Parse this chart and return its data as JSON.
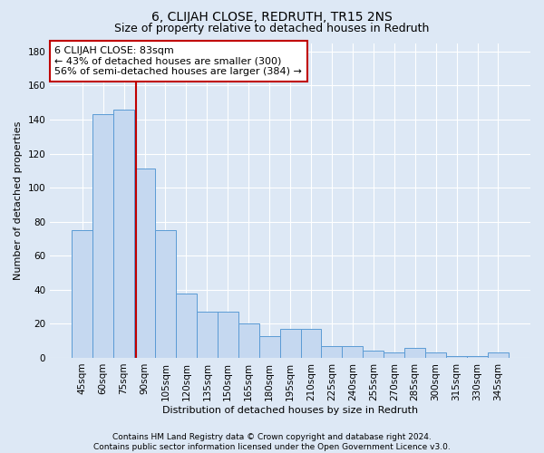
{
  "title": "6, CLIJAH CLOSE, REDRUTH, TR15 2NS",
  "subtitle": "Size of property relative to detached houses in Redruth",
  "xlabel": "Distribution of detached houses by size in Redruth",
  "ylabel": "Number of detached properties",
  "categories": [
    "45sqm",
    "60sqm",
    "75sqm",
    "90sqm",
    "105sqm",
    "120sqm",
    "135sqm",
    "150sqm",
    "165sqm",
    "180sqm",
    "195sqm",
    "210sqm",
    "225sqm",
    "240sqm",
    "255sqm",
    "270sqm",
    "285sqm",
    "300sqm",
    "315sqm",
    "330sqm",
    "345sqm"
  ],
  "values": [
    75,
    143,
    146,
    111,
    75,
    38,
    27,
    27,
    20,
    13,
    17,
    17,
    7,
    7,
    4,
    3,
    6,
    3,
    1,
    1,
    3
  ],
  "bar_color": "#c5d8f0",
  "bar_edge_color": "#5b9bd5",
  "red_line_x": 2.58,
  "annotation_text": "6 CLIJAH CLOSE: 83sqm\n← 43% of detached houses are smaller (300)\n56% of semi-detached houses are larger (384) →",
  "annotation_box_color": "white",
  "annotation_box_edge_color": "#c00000",
  "ylim": [
    0,
    185
  ],
  "yticks": [
    0,
    20,
    40,
    60,
    80,
    100,
    120,
    140,
    160,
    180
  ],
  "footer": "Contains HM Land Registry data © Crown copyright and database right 2024.\nContains public sector information licensed under the Open Government Licence v3.0.",
  "background_color": "#dde8f5",
  "plot_bg_color": "#dde8f5",
  "grid_color": "white",
  "title_fontsize": 10,
  "subtitle_fontsize": 9,
  "label_fontsize": 8,
  "tick_fontsize": 7.5,
  "footer_fontsize": 6.5,
  "annotation_fontsize": 8
}
